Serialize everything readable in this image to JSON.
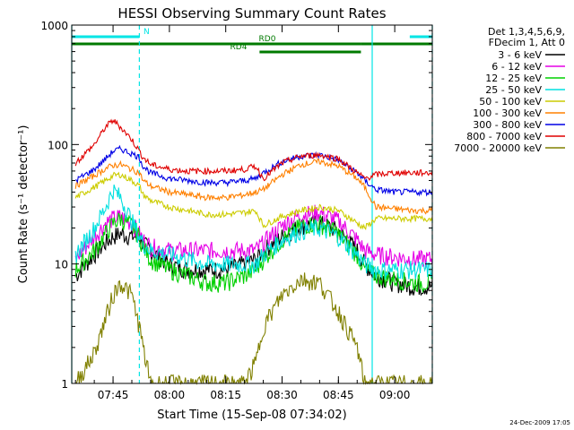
{
  "chart_data": {
    "type": "line",
    "title": "HESSI Observing Summary Count Rates",
    "xlabel": "Start Time (15-Sep-08 07:34:02)",
    "ylabel": "Count Rate (s⁻¹ detector⁻¹)",
    "yscale": "log",
    "ylim": [
      1,
      1000
    ],
    "xlim": [
      "07:34",
      "09:10"
    ],
    "x_ticks": [
      "07:45",
      "08:00",
      "08:15",
      "08:30",
      "08:45",
      "09:00"
    ],
    "y_ticks": [
      "1",
      "10",
      "100",
      "1000"
    ],
    "legend_header": [
      "Det 1,3,4,5,6,9,",
      "FDecim 1, Att 0"
    ],
    "legend_position": "outside-right",
    "footer_date": "24-Dec-2009 17:05",
    "flags": [
      {
        "label": "N",
        "color": "#00e5e5",
        "segments": [
          [
            "07:34",
            "07:52"
          ],
          [
            "09:04",
            "09:10"
          ]
        ]
      },
      {
        "label": "RD0",
        "color": "#007a00",
        "segments": [
          [
            "07:34",
            "08:51"
          ],
          [
            "08:51",
            "09:10"
          ]
        ]
      },
      {
        "label": "RD4",
        "color": "#007a00",
        "segments": [
          [
            "08:24",
            "08:51"
          ]
        ]
      }
    ],
    "vlines": [
      {
        "t": "07:34",
        "style": "solid"
      },
      {
        "t": "07:52",
        "style": "dashed"
      },
      {
        "t": "08:54",
        "style": "solid"
      },
      {
        "t": "09:10",
        "style": "dashed"
      }
    ],
    "x": [
      "07:35",
      "07:40",
      "07:43",
      "07:45",
      "07:47",
      "07:50",
      "07:52",
      "07:53",
      "07:55",
      "08:00",
      "08:05",
      "08:10",
      "08:15",
      "08:20",
      "08:23",
      "08:25",
      "08:30",
      "08:35",
      "08:40",
      "08:45",
      "08:50",
      "08:52",
      "08:55",
      "09:00",
      "09:05",
      "09:10"
    ],
    "series": [
      {
        "name": "3 - 6 keV",
        "color": "#000000",
        "values": [
          8,
          12,
          15,
          17,
          18,
          17,
          17,
          15,
          13,
          10,
          9,
          9,
          9,
          10,
          11,
          13,
          17,
          21,
          22,
          19,
          13,
          10,
          8,
          7,
          6.5,
          6.5
        ]
      },
      {
        "name": "6 - 12 keV",
        "color": "#e600e6",
        "values": [
          11,
          17,
          22,
          24,
          25,
          22,
          18,
          16,
          14,
          13,
          13,
          13,
          13,
          13,
          13,
          15,
          21,
          26,
          27,
          23,
          16,
          13,
          12,
          11.5,
          11,
          11
        ]
      },
      {
        "name": "12 - 25 keV",
        "color": "#00d000",
        "values": [
          9,
          13,
          18,
          22,
          24,
          21,
          17,
          14,
          11,
          9,
          8,
          7,
          7,
          8,
          9,
          11,
          16,
          21,
          22,
          18,
          12,
          9,
          8,
          7.5,
          7,
          7
        ]
      },
      {
        "name": "25 - 50 keV",
        "color": "#00e0e0",
        "values": [
          12,
          20,
          30,
          42,
          36,
          23,
          17,
          15,
          13,
          12,
          11,
          10,
          10,
          10,
          10,
          12,
          16,
          19,
          20,
          17,
          12,
          10,
          9,
          9,
          9,
          9
        ]
      },
      {
        "name": "50 - 100 keV",
        "color": "#cccc00",
        "values": [
          36,
          44,
          50,
          55,
          56,
          50,
          45,
          38,
          34,
          30,
          28,
          26,
          26,
          27,
          28,
          21,
          25,
          28,
          30,
          28,
          22,
          20,
          24,
          24,
          24,
          24
        ]
      },
      {
        "name": "100 - 300 keV",
        "color": "#ff8000",
        "values": [
          45,
          55,
          63,
          67,
          68,
          62,
          58,
          50,
          45,
          40,
          38,
          36,
          36,
          38,
          40,
          42,
          56,
          68,
          72,
          66,
          52,
          44,
          30,
          29,
          28,
          28
        ]
      },
      {
        "name": "300 - 800 keV",
        "color": "#0000e6",
        "values": [
          50,
          62,
          76,
          88,
          92,
          84,
          78,
          66,
          58,
          52,
          50,
          48,
          48,
          50,
          52,
          58,
          72,
          80,
          82,
          74,
          58,
          50,
          42,
          40,
          40,
          40
        ]
      },
      {
        "name": "800 - 7000 keV",
        "color": "#e00000",
        "values": [
          70,
          100,
          140,
          160,
          140,
          110,
          88,
          78,
          68,
          62,
          60,
          60,
          60,
          62,
          66,
          52,
          70,
          80,
          82,
          76,
          58,
          52,
          56,
          58,
          58,
          58
        ]
      },
      {
        "name": "7000 - 20000 keV",
        "color": "#808000",
        "values": [
          1,
          1.8,
          3.5,
          5.5,
          7,
          5.5,
          3,
          2,
          1,
          1,
          1,
          1,
          1,
          1,
          1.5,
          3,
          5.5,
          7.5,
          7,
          4,
          2,
          1,
          1,
          1,
          1,
          1
        ]
      }
    ]
  }
}
